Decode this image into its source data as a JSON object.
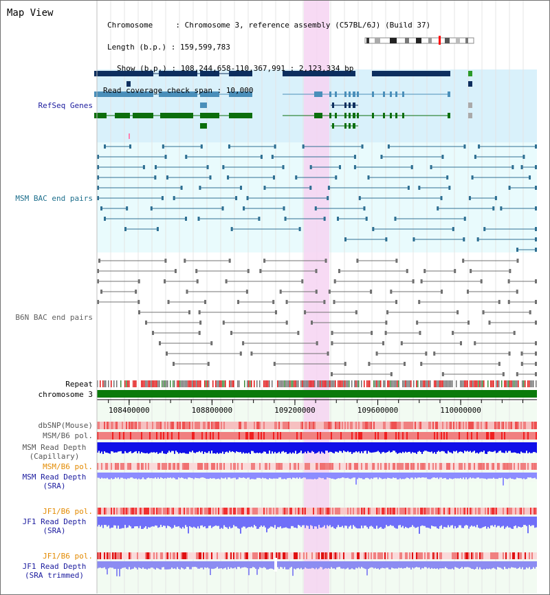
{
  "header": {
    "title": "Map View",
    "chromosome_key": "Chromosome",
    "chromosome_value": ": Chromosome 3, reference assembly (C57BL/6J) (Build 37)",
    "length_key": "Length (b.p.)",
    "length_value": ": 159,599,783",
    "show_key": "Show (b.p.)",
    "show_value": ": 108,244,658-110,367,991 : 2,123,334 bp",
    "coverage_text": "Read coverage check span : 10,000"
  },
  "tracks": {
    "refseq_genes": "RefSeq Genes",
    "msm_bac": "MSM BAC end pairs",
    "b6n_bac": "B6N BAC end pairs",
    "repeat": "Repeat",
    "chromosome": "chromosome 3",
    "dbsnp": "dbSNP(Mouse)",
    "msm_b6_pol": "MSM/B6 pol.",
    "msm_depth_cap_1": "MSM Read Depth",
    "msm_depth_cap_2": "(Capillary)",
    "msm_b6_pol_2": "MSM/B6 pol.",
    "msm_depth_sra_1": "MSM Read Depth",
    "msm_depth_sra_2": "(SRA)",
    "jf1_b6_pol": "JF1/B6 pol.",
    "jf1_depth_sra_1": "JF1 Read Depth",
    "jf1_depth_sra_2": "(SRA)",
    "jf1_b6_pol_2": "JF1/B6 pol.",
    "jf1_depth_trim_1": "JF1 Read Depth",
    "jf1_depth_trim_2": "(SRA trimmed)"
  },
  "axis": {
    "ticks": [
      "108400000",
      "108800000",
      "109200000",
      "109600000",
      "110000000"
    ]
  },
  "colors": {
    "gene_dark": "#0d2e5e",
    "gene_light": "#4a8fba",
    "gene_green": "#0c6e0c",
    "refseq_bg": "#d9f1fb",
    "bac_bg": "#e9fbfd",
    "msm_pair": "#2e6f92",
    "b6n_pair": "#707070",
    "highlight": "#f6d4f2",
    "chromosome_bar": "#0a7a0a",
    "depth_cap": "#1010e8",
    "depth_sra": "#8c8cff",
    "label_blue": "#1b1b9e",
    "label_orange": "#e38a00",
    "label_teal": "#1c6e8c"
  }
}
